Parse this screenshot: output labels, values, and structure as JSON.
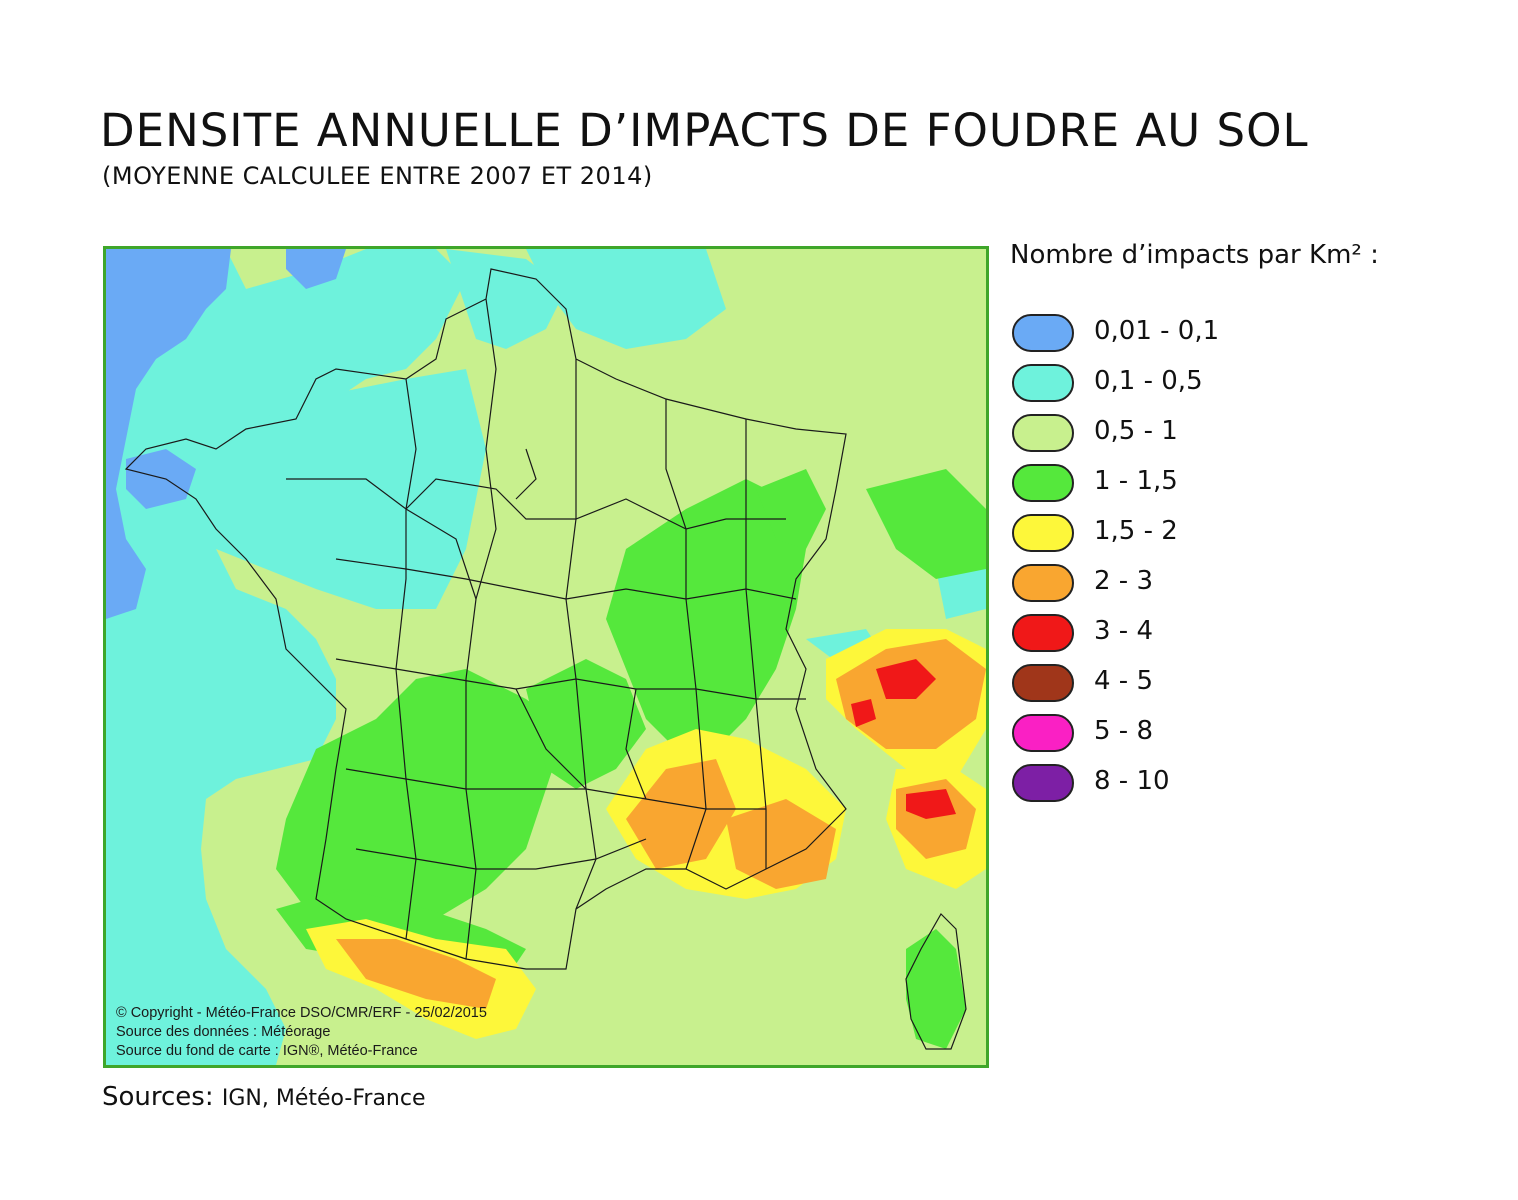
{
  "header": {
    "title": "DENSITE ANNUELLE D’IMPACTS DE FOUDRE AU SOL",
    "subtitle": "(MOYENNE CALCULEE ENTRE 2007 ET 2014)"
  },
  "map": {
    "copyright": "© Copyright - Météo-France DSO/CMR/ERF - 25/02/2015",
    "data_source": "Source des données : Météorage",
    "basemap_source": "Source du fond de carte : IGN®, Météo-France",
    "colors": {
      "frame": "#3fa62a",
      "borders": "#1a1a1a"
    }
  },
  "legend": {
    "title": "Nombre d’impacts par Km² :",
    "items": [
      {
        "label": "0,01  -  0,1",
        "color": "#6aaaf5"
      },
      {
        "label": "0,1  -  0,5",
        "color": "#6ef2dc"
      },
      {
        "label": "0,5  -  1",
        "color": "#c8f08e"
      },
      {
        "label": "1  -  1,5",
        "color": "#55e83c"
      },
      {
        "label": "1,5  -  2",
        "color": "#fdf73a"
      },
      {
        "label": "2  -  3",
        "color": "#f9a630"
      },
      {
        "label": "3  -  4",
        "color": "#f01818"
      },
      {
        "label": "4  -  5",
        "color": "#a0361a"
      },
      {
        "label": "5  -  8",
        "color": "#fa20c4"
      },
      {
        "label": "8  -  10",
        "color": "#7d1fa5"
      }
    ]
  },
  "footer": {
    "sources_label": "Sources:",
    "sources_value": "IGN, Météo-France"
  }
}
